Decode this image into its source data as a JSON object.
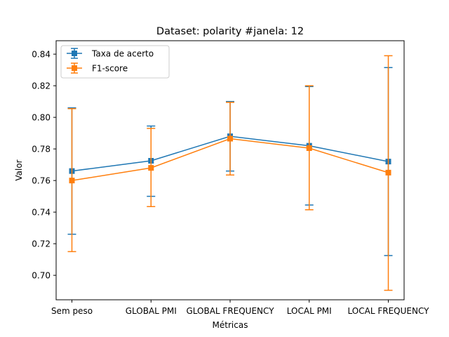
{
  "chart_data": {
    "type": "line",
    "title": "Dataset: polarity #janela: 12",
    "xlabel": "Métricas",
    "ylabel": "Valor",
    "categories": [
      "Sem peso",
      "GLOBAL PMI",
      "GLOBAL FREQUENCY",
      "LOCAL PMI",
      "LOCAL FREQUENCY"
    ],
    "ylim": [
      0.6845,
      0.8485
    ],
    "yticks": [
      0.7,
      0.72,
      0.74,
      0.76,
      0.78,
      0.8,
      0.82,
      0.84
    ],
    "ytick_labels": [
      "0.70",
      "0.72",
      "0.74",
      "0.76",
      "0.78",
      "0.80",
      "0.82",
      "0.84"
    ],
    "grid": false,
    "legend_position": "top-left",
    "series": [
      {
        "name": "Taxa de acerto",
        "color": "#1f77b4",
        "marker": "square",
        "values": [
          0.766,
          0.7725,
          0.788,
          0.782,
          0.772
        ],
        "err_low": [
          0.726,
          0.75,
          0.766,
          0.7445,
          0.7125
        ],
        "err_high": [
          0.806,
          0.7945,
          0.81,
          0.8195,
          0.8315
        ]
      },
      {
        "name": "F1-score",
        "color": "#ff7f0e",
        "marker": "square",
        "values": [
          0.76,
          0.768,
          0.7865,
          0.7805,
          0.765
        ],
        "err_low": [
          0.715,
          0.7435,
          0.7635,
          0.7415,
          0.6905
        ],
        "err_high": [
          0.8055,
          0.793,
          0.8095,
          0.82,
          0.839
        ]
      }
    ]
  }
}
